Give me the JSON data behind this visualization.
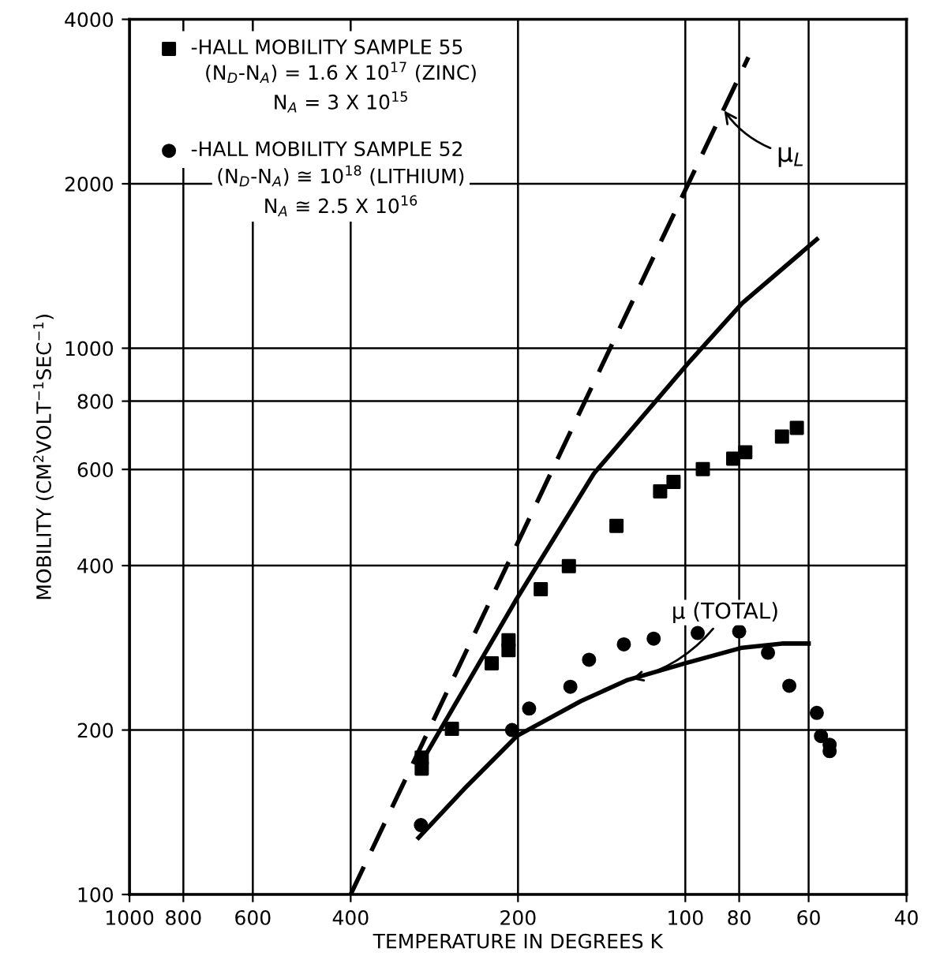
{
  "chart_data": {
    "type": "scatter",
    "xlabel": "TEMPERATURE IN DEGREES K",
    "ylabel": "MOBILITY (CM$^{2}$VOLT$^{−1}$SEC$^{−1}$)",
    "log": "xy",
    "xlim": [
      1000,
      40
    ],
    "ylim": [
      100,
      4000
    ],
    "xticks": [
      1000,
      800,
      600,
      400,
      200,
      100,
      80,
      60,
      40
    ],
    "yticks": [
      100,
      200,
      400,
      600,
      800,
      1000,
      2000,
      4000
    ],
    "grid": true,
    "legend": "top left",
    "series": [
      {
        "name": "-HALL MOBILITY SAMPLE 55",
        "marker": "square",
        "color": "#000000",
        "x": [
          298,
          298,
          263,
          223,
          208,
          208,
          182,
          162,
          133,
          111,
          105,
          93,
          82,
          78,
          67,
          63
        ],
        "values": [
          178,
          170,
          201,
          265,
          292,
          280,
          362,
          399,
          473,
          547,
          569,
          601,
          628,
          645,
          689,
          715
        ]
      },
      {
        "name": "-HALL MOBILITY SAMPLE 52",
        "marker": "circle",
        "color": "#000000",
        "x": [
          299,
          205,
          191,
          161,
          149,
          129,
          114,
          95,
          80,
          71,
          65,
          58,
          57,
          55,
          55
        ],
        "values": [
          134,
          200,
          219,
          240,
          269,
          287,
          294,
          301,
          303,
          277,
          241,
          215,
          195,
          188,
          183
        ]
      },
      {
        "type": "line",
        "line_style": "dashed",
        "marker": "none",
        "color": "#000000",
        "x": [
          400,
          77
        ],
        "values": [
          100,
          3410
        ]
      },
      {
        "type": "line",
        "line_style": "solid",
        "marker": "none",
        "color": "#000000",
        "x": [
          299,
          201,
          146,
          98,
          79,
          58
        ],
        "values": [
          174,
          348,
          590,
          948,
          1209,
          1582
        ]
      },
      {
        "type": "line",
        "line_style": "solid",
        "marker": "none",
        "color": "#000000",
        "x": [
          302,
          250,
          201,
          154,
          127,
          100,
          79,
          67,
          60
        ],
        "values": [
          127,
          156,
          195,
          226,
          247,
          265,
          283,
          288,
          288
        ]
      }
    ],
    "annotations": [
      {
        "text": "μ$_{L}$",
        "x": 86,
        "y": 2765
      },
      {
        "text": "μ (TOTAL)",
        "x": 127,
        "y": 247
      },
      "(N$_{D}$-N$_{A}$) = 1.6 X 10$^{17}$ (ZINC)\nN$_{A}$ = 3 X 10$^{15}$",
      "(N$_{D}$-N$_{A}$) ≅ 10$^{18}$ (LITHIUM)\nN$_{A}$ ≅ 2.5 X 10$^{16}$"
    ]
  }
}
